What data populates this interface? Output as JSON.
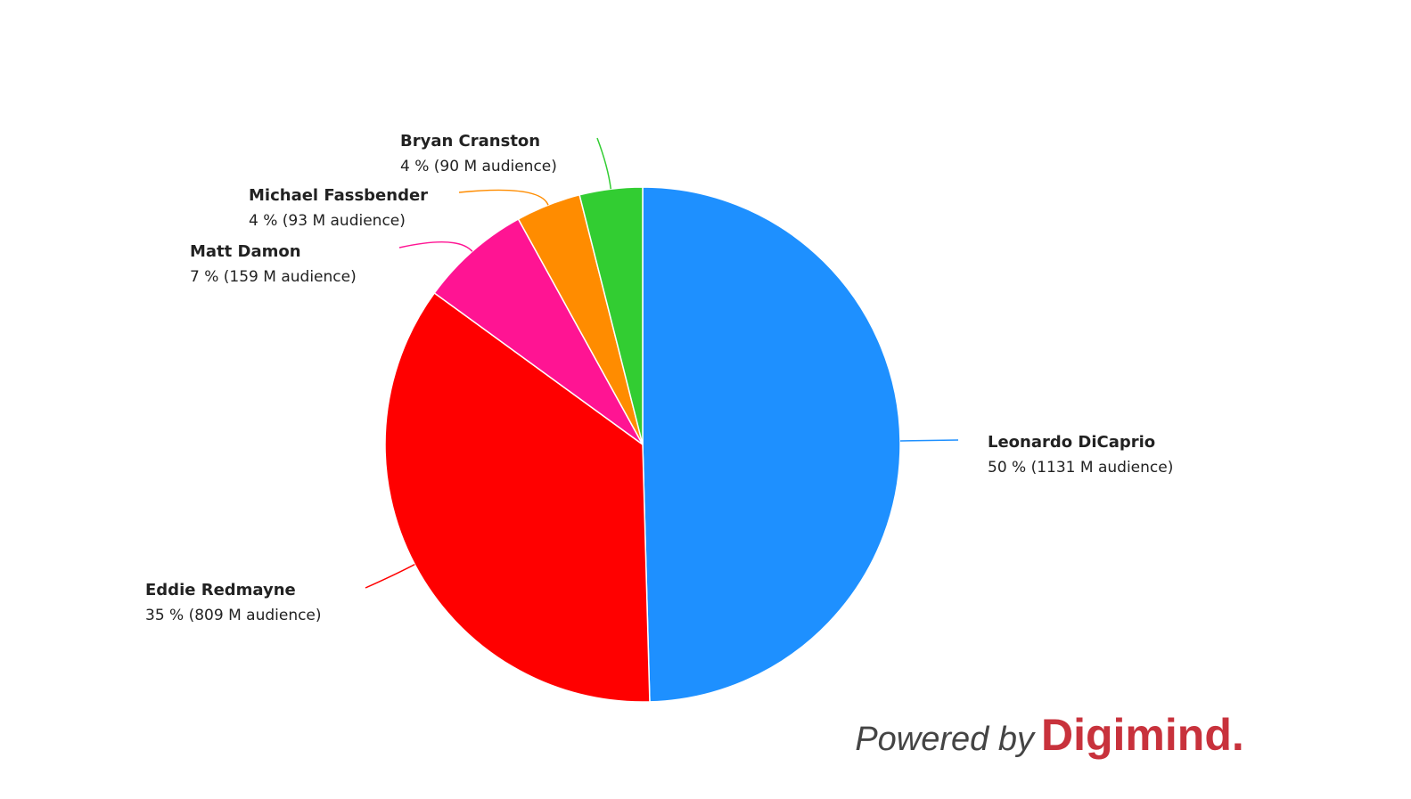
{
  "chart_data": {
    "type": "pie",
    "categories": [
      "Leonardo DiCaprio",
      "Eddie Redmayne",
      "Matt Damon",
      "Michael Fassbender",
      "Bryan Cranston"
    ],
    "values": [
      1131,
      809,
      159,
      93,
      90
    ],
    "value_labels": [
      "50 % (1131 M audience)",
      "35 % (809 M audience)",
      "7 % (159 M audience)",
      "4 % (93 M audience)",
      "4 % (90 M audience)"
    ],
    "colors": [
      "#1e90ff",
      "#ff0000",
      "#ff1493",
      "#ff8c00",
      "#32cd32"
    ]
  },
  "footer": {
    "powered_by": "Powered by",
    "brand": "Digimind."
  }
}
